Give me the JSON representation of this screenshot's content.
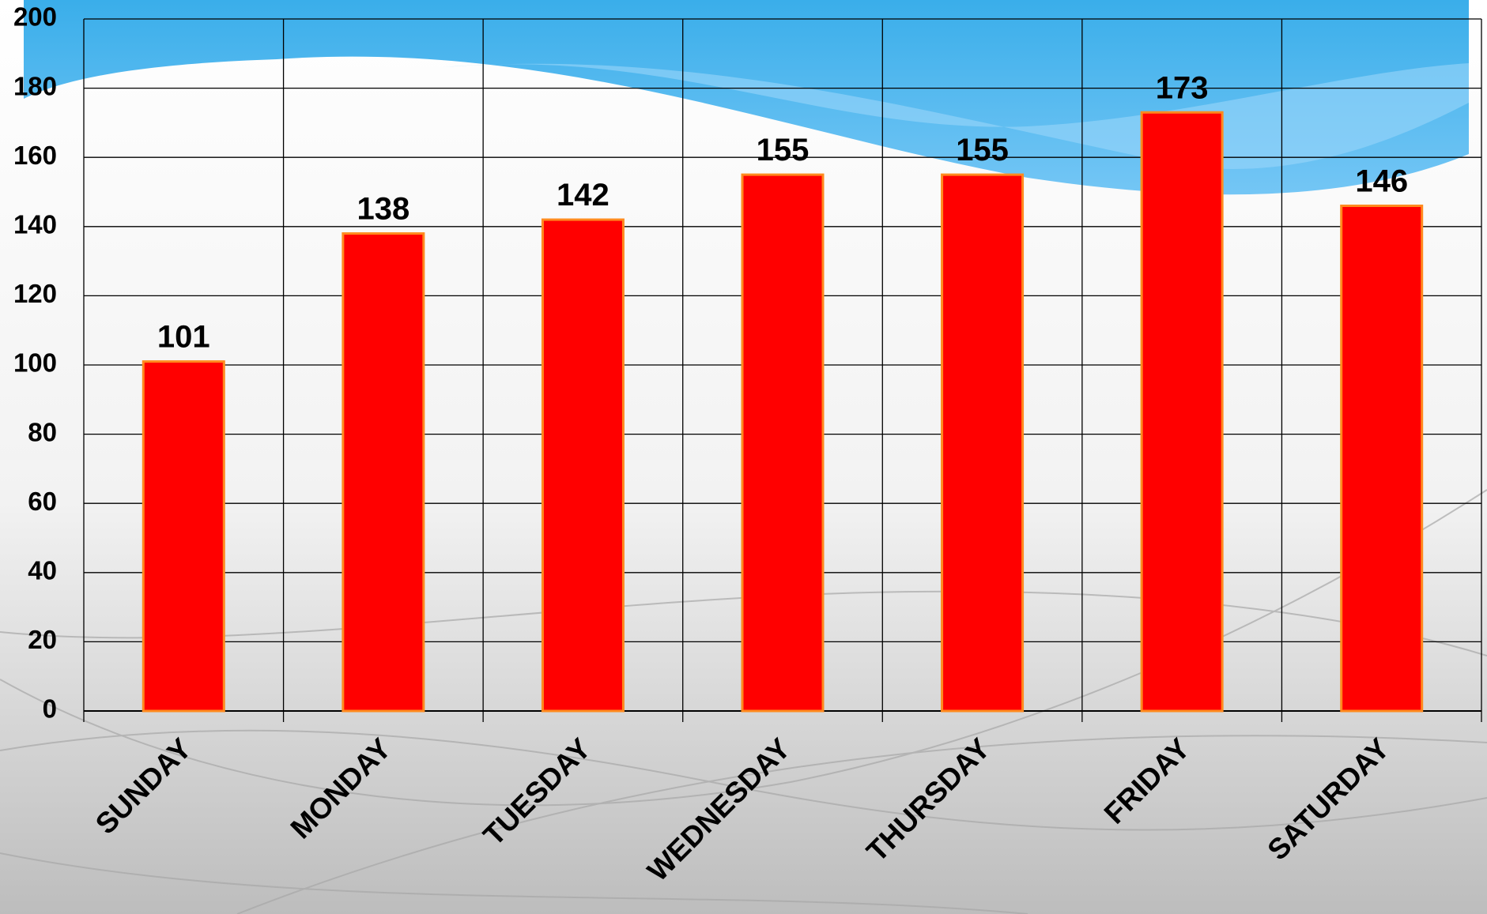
{
  "chart_data": {
    "type": "bar",
    "categories": [
      "SUNDAY",
      "MONDAY",
      "TUESDAY",
      "WEDNESDAY",
      "THURSDAY",
      "FRIDAY",
      "SATURDAY"
    ],
    "values": [
      101,
      138,
      142,
      155,
      155,
      173,
      146
    ],
    "color": "#ff0000",
    "edge_color": "#ff8a1e",
    "ylim": [
      0,
      200
    ],
    "yticks": [
      0,
      20,
      40,
      60,
      80,
      100,
      120,
      140,
      160,
      180,
      200
    ],
    "grid": true
  }
}
